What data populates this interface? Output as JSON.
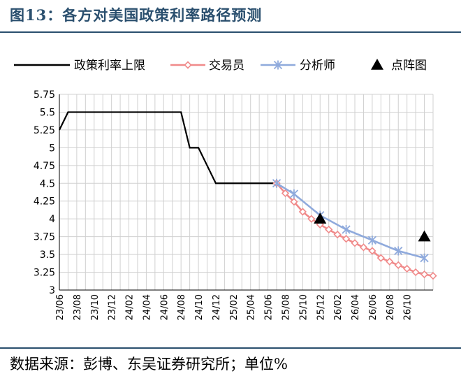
{
  "title": "图13：各方对美国政策利率路径预测",
  "source": "数据来源：彭博、东吴证券研究所；单位%",
  "colors": {
    "title": "#2a4f6e",
    "policy_line": "#000000",
    "market": "#f08a8a",
    "analyst": "#8faadc",
    "dot_plot": "#000000",
    "grid": "#d0d0d0"
  },
  "chart_data": {
    "type": "line",
    "legend_position": "top",
    "grid": true,
    "ylim": [
      3,
      5.75
    ],
    "yticks": [
      "5.75",
      "5.5",
      "5.25",
      "5",
      "4.75",
      "4.5",
      "4.25",
      "4",
      "3.75",
      "3.5",
      "3.25",
      "3"
    ],
    "xticks": [
      "23/06",
      "23/08",
      "23/10",
      "23/12",
      "24/02",
      "24/04",
      "24/06",
      "24/08",
      "24/10",
      "24/12",
      "25/02",
      "25/04",
      "25/06",
      "25/08",
      "25/10",
      "25/12",
      "26/02",
      "26/04",
      "26/06",
      "26/08",
      "26/10"
    ],
    "series": [
      {
        "name": "政策利率上限",
        "marker": "none",
        "points": [
          [
            "2023-06",
            5.25
          ],
          [
            "2023-07",
            5.5
          ],
          [
            "2024-08",
            5.5
          ],
          [
            "2024-09",
            5.0
          ],
          [
            "2024-10",
            5.0
          ],
          [
            "2024-11",
            4.75
          ],
          [
            "2024-12",
            4.5
          ],
          [
            "2025-07",
            4.5
          ]
        ]
      },
      {
        "name": "交易员",
        "marker": "diamond",
        "points": [
          [
            "2025-07",
            4.5
          ],
          [
            "2025-08",
            4.36
          ],
          [
            "2025-09",
            4.24
          ],
          [
            "2025-10",
            4.1
          ],
          [
            "2025-11",
            4.0
          ],
          [
            "2025-12",
            3.92
          ],
          [
            "2026-01",
            3.85
          ],
          [
            "2026-02",
            3.78
          ],
          [
            "2026-03",
            3.72
          ],
          [
            "2026-04",
            3.66
          ],
          [
            "2026-05",
            3.6
          ],
          [
            "2026-06",
            3.55
          ],
          [
            "2026-07",
            3.45
          ],
          [
            "2026-08",
            3.4
          ],
          [
            "2026-09",
            3.35
          ],
          [
            "2026-10",
            3.3
          ],
          [
            "2026-11",
            3.25
          ],
          [
            "2026-12",
            3.22
          ],
          [
            "2027-01",
            3.2
          ]
        ]
      },
      {
        "name": "分析师",
        "marker": "asterisk",
        "points": [
          [
            "2025-07",
            4.5
          ],
          [
            "2025-09",
            4.35
          ],
          [
            "2025-12",
            4.05
          ],
          [
            "2026-03",
            3.85
          ],
          [
            "2026-06",
            3.7
          ],
          [
            "2026-09",
            3.55
          ],
          [
            "2026-12",
            3.45
          ]
        ]
      },
      {
        "name": "点阵图",
        "marker": "triangle",
        "points": [
          [
            "2025-12",
            4.0
          ],
          [
            "2026-12",
            3.75
          ]
        ]
      }
    ]
  }
}
